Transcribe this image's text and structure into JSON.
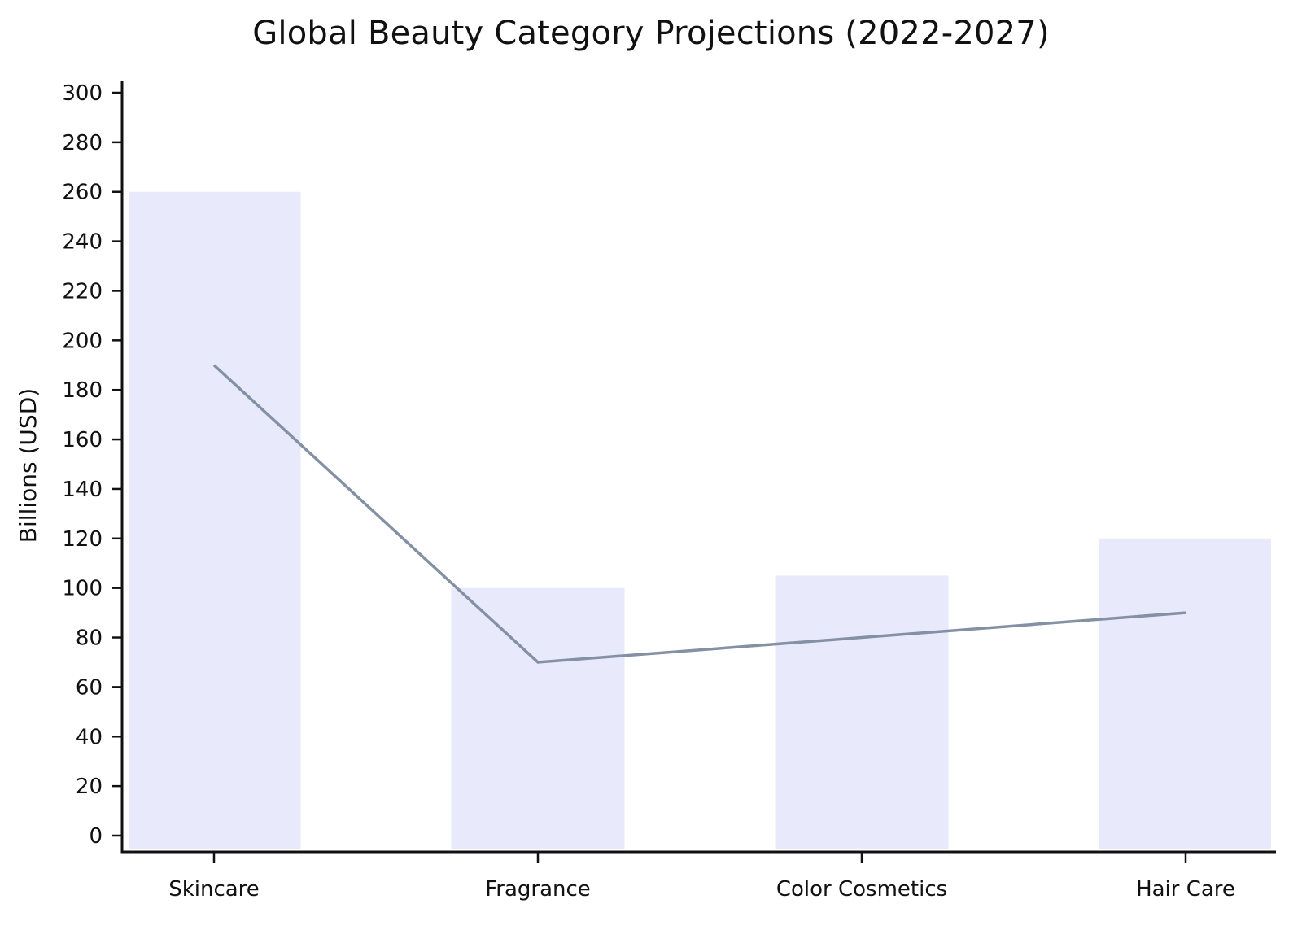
{
  "chart_data": {
    "type": "bar",
    "title": "Global Beauty Category Projections (2022-2027)",
    "xlabel": "",
    "ylabel": "Billions (USD)",
    "categories": [
      "Skincare",
      "Fragrance",
      "Color Cosmetics",
      "Hair Care"
    ],
    "series": [
      {
        "type": "bar",
        "values": [
          260,
          100,
          105,
          120
        ],
        "color": "#e9e9fc"
      },
      {
        "type": "line",
        "values": [
          190,
          70,
          80,
          90
        ],
        "color": "#8490a3"
      }
    ],
    "ylim": [
      0,
      300
    ],
    "yticks": [
      0,
      20,
      40,
      60,
      80,
      100,
      120,
      140,
      160,
      180,
      200,
      220,
      240,
      260,
      280,
      300
    ],
    "grid": false,
    "legend": "none"
  }
}
